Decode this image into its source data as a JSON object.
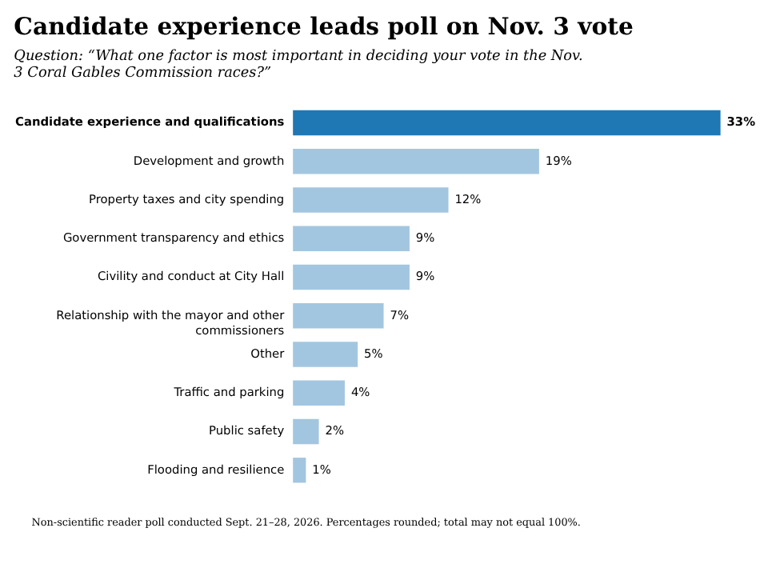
{
  "chart_data": {
    "type": "bar",
    "orientation": "horizontal",
    "title": "Candidate experience leads poll on Nov. 3 vote",
    "subtitle": "Question: “What one factor is most important in deciding your vote in the Nov. 3 Coral Gables Commission races?”",
    "categories": [
      "Candidate experience and qualifications",
      "Development and growth",
      "Property taxes and city spending",
      "Government transparency and ethics",
      "Civility and conduct at City Hall",
      "Relationship with the mayor and other commissioners",
      "Other",
      "Traffic and parking",
      "Public safety",
      "Flooding and resilience"
    ],
    "values": [
      33,
      19,
      12,
      9,
      9,
      7,
      5,
      4,
      2,
      1
    ],
    "value_labels": [
      "33%",
      "19%",
      "12%",
      "9%",
      "9%",
      "7%",
      "5%",
      "4%",
      "2%",
      "1%"
    ],
    "colors": [
      "#1f77b4",
      "#a3c6e0",
      "#a3c6e0",
      "#a3c6e0",
      "#a3c6e0",
      "#a3c6e0",
      "#a3c6e0",
      "#a3c6e0",
      "#a3c6e0",
      "#a3c6e0"
    ],
    "annotations": [
      "Non-scientific reader poll conducted Sept. 21–28, 2026. Percentages rounded; total may not equal 100%."
    ],
    "grid": false
  }
}
